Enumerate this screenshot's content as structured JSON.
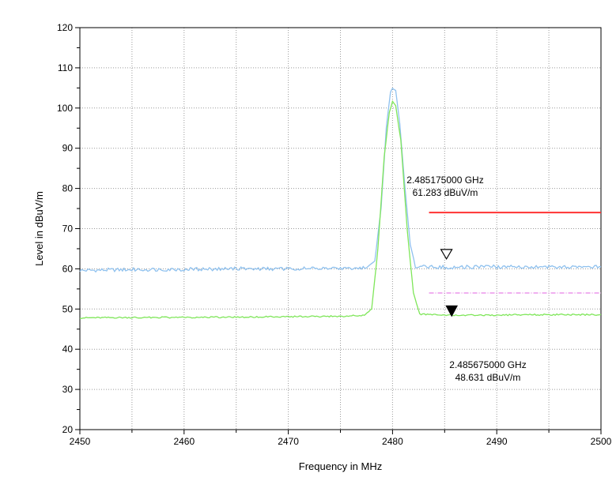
{
  "chart_data": {
    "type": "line",
    "xlabel": "Frequency in MHz",
    "ylabel": "Level in dBuV/m",
    "xlim": [
      2450,
      2500
    ],
    "ylim": [
      20,
      120
    ],
    "x_ticks": [
      2450,
      2460,
      2470,
      2480,
      2490,
      2500
    ],
    "y_ticks": [
      20,
      30,
      40,
      50,
      60,
      70,
      80,
      90,
      100,
      110,
      120
    ],
    "grid": true,
    "series": [
      {
        "color": "#8fc1ee",
        "points": [
          [
            2450,
            59.6
          ],
          [
            2455,
            59.8
          ],
          [
            2460,
            59.9
          ],
          [
            2465,
            60.0
          ],
          [
            2470,
            60.0
          ],
          [
            2475,
            60.1
          ],
          [
            2477.5,
            60.2
          ],
          [
            2478.3,
            62
          ],
          [
            2478.9,
            75
          ],
          [
            2479.4,
            95
          ],
          [
            2479.8,
            104
          ],
          [
            2480.0,
            105.3
          ],
          [
            2480.3,
            104.5
          ],
          [
            2480.7,
            96
          ],
          [
            2481.2,
            80
          ],
          [
            2481.7,
            66
          ],
          [
            2482.2,
            60.5
          ],
          [
            2485,
            60.4
          ],
          [
            2490,
            60.5
          ],
          [
            2495,
            60.5
          ],
          [
            2500,
            60.5
          ]
        ]
      },
      {
        "color": "#7fe65a",
        "points": [
          [
            2450,
            47.8
          ],
          [
            2455,
            47.9
          ],
          [
            2460,
            47.9
          ],
          [
            2465,
            48.0
          ],
          [
            2470,
            48.1
          ],
          [
            2475,
            48.2
          ],
          [
            2477.3,
            48.4
          ],
          [
            2478.0,
            50
          ],
          [
            2478.6,
            65
          ],
          [
            2479.2,
            88
          ],
          [
            2479.7,
            99
          ],
          [
            2480.0,
            101.6
          ],
          [
            2480.3,
            100.5
          ],
          [
            2480.8,
            92
          ],
          [
            2481.4,
            70
          ],
          [
            2482.0,
            54
          ],
          [
            2482.6,
            48.7
          ],
          [
            2485,
            48.5
          ],
          [
            2490,
            48.5
          ],
          [
            2495,
            48.6
          ],
          [
            2500,
            48.6
          ]
        ]
      }
    ],
    "limit_lines": [
      {
        "color": "#ff3333",
        "style": "solid",
        "x_start": 2483.5,
        "x_end": 2500,
        "y": 74
      },
      {
        "color": "#e060e0",
        "style": "dashdot",
        "x_start": 2483.5,
        "x_end": 2500,
        "y": 54
      }
    ],
    "markers": [
      {
        "type": "open-triangle",
        "x": 2485.175,
        "y": 61.283,
        "label_freq": "2.485175000 GHz",
        "label_level": "61.283 dBuV/m"
      },
      {
        "type": "filled-triangle",
        "x": 2485.675,
        "y": 48.631,
        "label_freq": "2.485675000 GHz",
        "label_level": "48.631 dBuV/m"
      }
    ]
  }
}
